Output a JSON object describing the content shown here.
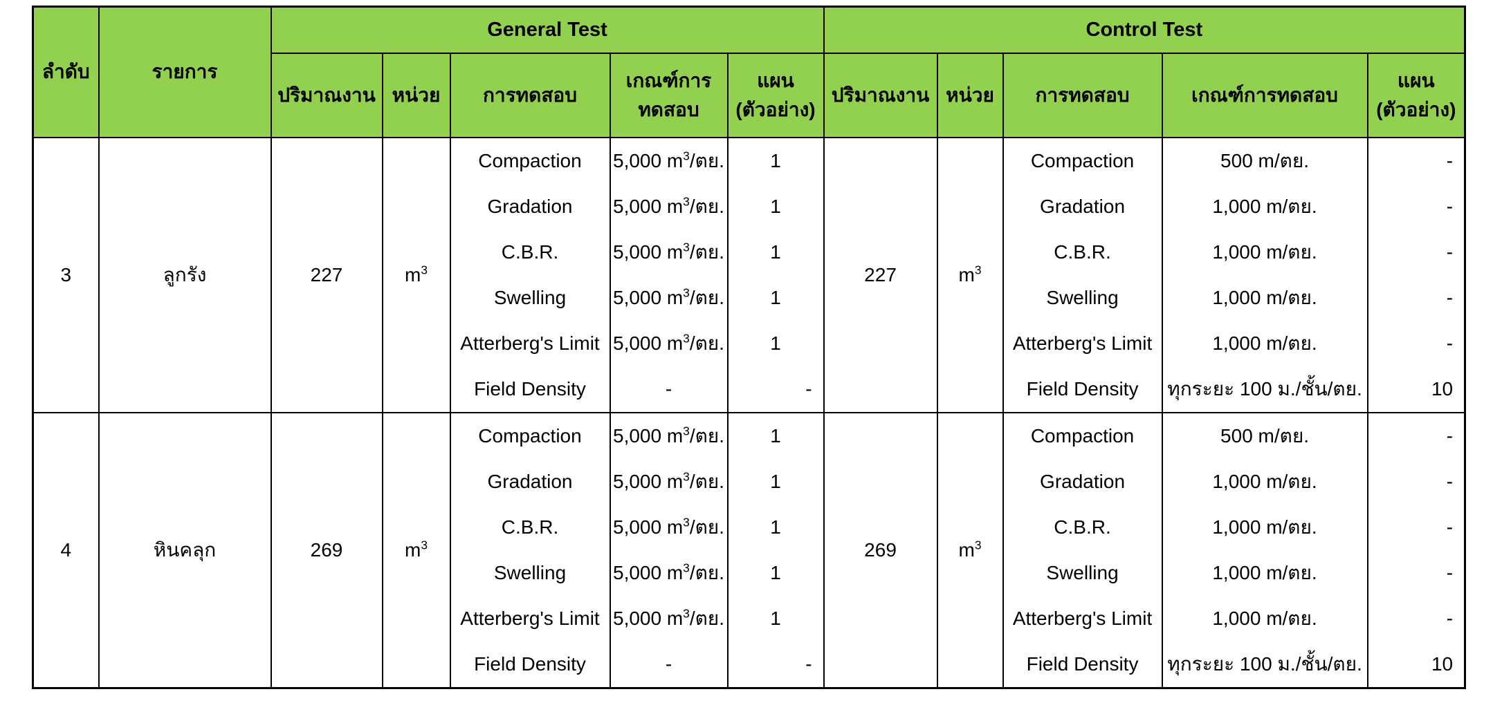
{
  "colors": {
    "header_fill": "#92d050",
    "grid_line": "#000000",
    "text": "#000000",
    "page_background": "#ffffff"
  },
  "table": {
    "header": {
      "order": "ลำดับ",
      "item": "รายการ",
      "general": {
        "title": "General Test",
        "quantity": "ปริมาณงาน",
        "unit": "หน่วย",
        "test": "การทดสอบ",
        "criteria_line1": "เกณฑ์การ",
        "criteria_line2": "ทดสอบ",
        "plan_line1": "แผน",
        "plan_line2": "(ตัวอย่าง)"
      },
      "control": {
        "title": "Control Test",
        "quantity": "ปริมาณงาน",
        "unit": "หน่วย",
        "test": "การทดสอบ",
        "criteria": "เกณฑ์การทดสอบ",
        "plan_line1": "แผน",
        "plan_line2": "(ตัวอย่าง)"
      }
    },
    "rows": [
      {
        "order": "3",
        "item": "ลูกรัง",
        "general": {
          "quantity": "227",
          "unit": "m³",
          "tests": [
            {
              "name": "Compaction",
              "criteria": "5,000 m³/ตย.",
              "plan": "1"
            },
            {
              "name": "Gradation",
              "criteria": "5,000 m³/ตย.",
              "plan": "1"
            },
            {
              "name": "C.B.R.",
              "criteria": "5,000 m³/ตย.",
              "plan": "1"
            },
            {
              "name": "Swelling",
              "criteria": "5,000 m³/ตย.",
              "plan": "1"
            },
            {
              "name": "Atterberg's Limit",
              "criteria": "5,000 m³/ตย.",
              "plan": "1"
            },
            {
              "name": "Field Density",
              "criteria": "-",
              "plan": "-"
            }
          ]
        },
        "control": {
          "quantity": "227",
          "unit": "m³",
          "tests": [
            {
              "name": "Compaction",
              "criteria": "500 m/ตย.",
              "plan": "-"
            },
            {
              "name": "Gradation",
              "criteria": "1,000 m/ตย.",
              "plan": "-"
            },
            {
              "name": "C.B.R.",
              "criteria": "1,000 m/ตย.",
              "plan": "-"
            },
            {
              "name": "Swelling",
              "criteria": "1,000 m/ตย.",
              "plan": "-"
            },
            {
              "name": "Atterberg's Limit",
              "criteria": "1,000 m/ตย.",
              "plan": "-"
            },
            {
              "name": "Field Density",
              "criteria": "ทุกระยะ 100 ม./ชั้น/ตย.",
              "plan": "10"
            }
          ]
        }
      },
      {
        "order": "4",
        "item": "หินคลุก",
        "general": {
          "quantity": "269",
          "unit": "m³",
          "tests": [
            {
              "name": "Compaction",
              "criteria": "5,000 m³/ตย.",
              "plan": "1"
            },
            {
              "name": "Gradation",
              "criteria": "5,000 m³/ตย.",
              "plan": "1"
            },
            {
              "name": "C.B.R.",
              "criteria": "5,000 m³/ตย.",
              "plan": "1"
            },
            {
              "name": "Swelling",
              "criteria": "5,000 m³/ตย.",
              "plan": "1"
            },
            {
              "name": "Atterberg's Limit",
              "criteria": "5,000 m³/ตย.",
              "plan": "1"
            },
            {
              "name": "Field Density",
              "criteria": "-",
              "plan": "-"
            }
          ]
        },
        "control": {
          "quantity": "269",
          "unit": "m³",
          "tests": [
            {
              "name": "Compaction",
              "criteria": "500 m/ตย.",
              "plan": "-"
            },
            {
              "name": "Gradation",
              "criteria": "1,000 m/ตย.",
              "plan": "-"
            },
            {
              "name": "C.B.R.",
              "criteria": "1,000 m/ตย.",
              "plan": "-"
            },
            {
              "name": "Swelling",
              "criteria": "1,000 m/ตย.",
              "plan": "-"
            },
            {
              "name": "Atterberg's Limit",
              "criteria": "1,000 m/ตย.",
              "plan": "-"
            },
            {
              "name": "Field Density",
              "criteria": "ทุกระยะ 100 ม./ชั้น/ตย.",
              "plan": "10"
            }
          ]
        }
      }
    ]
  }
}
